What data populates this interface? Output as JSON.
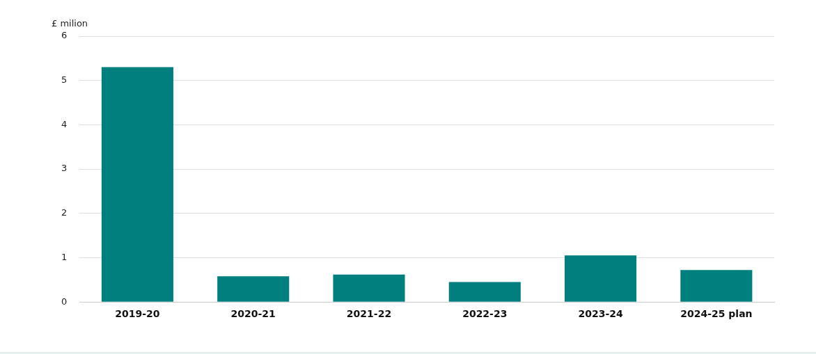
{
  "chart_data": {
    "type": "bar",
    "y_label": "£ milion",
    "categories": [
      "2019-20",
      "2020-21",
      "2021-22",
      "2022-23",
      "2023-24",
      "2024-25 plan"
    ],
    "values": [
      5.3,
      0.58,
      0.62,
      0.45,
      1.05,
      0.72
    ],
    "color": "#007f7f",
    "ylim": [
      0,
      6
    ],
    "yticks": [
      0,
      1,
      2,
      3,
      4,
      5,
      6
    ],
    "grid": true
  }
}
